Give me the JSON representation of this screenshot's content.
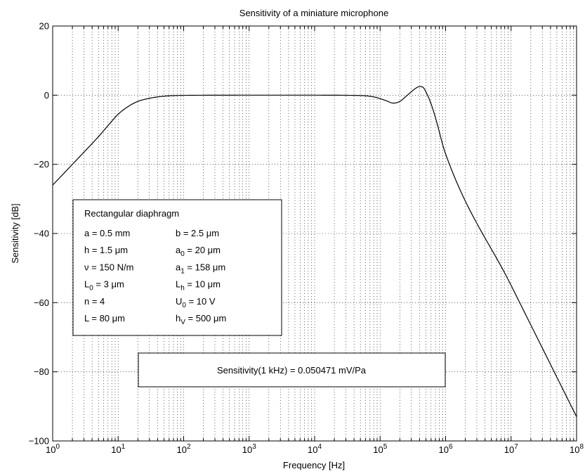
{
  "chart_data": {
    "type": "line",
    "title": "Sensitivity of a miniature microphone",
    "xlabel": "Frequency [Hz]",
    "ylabel": "Sensitivity [dB]",
    "x_scale": "log",
    "xlim": [
      1,
      100000000
    ],
    "ylim": [
      -100,
      20
    ],
    "grid": true,
    "line_color": "#000000",
    "x_ticks": [
      {
        "base": "10",
        "exp": "0"
      },
      {
        "base": "10",
        "exp": "1"
      },
      {
        "base": "10",
        "exp": "2"
      },
      {
        "base": "10",
        "exp": "3"
      },
      {
        "base": "10",
        "exp": "4"
      },
      {
        "base": "10",
        "exp": "5"
      },
      {
        "base": "10",
        "exp": "6"
      },
      {
        "base": "10",
        "exp": "7"
      },
      {
        "base": "10",
        "exp": "8"
      }
    ],
    "y_ticks": [
      "20",
      "0",
      "−20",
      "−40",
      "−60",
      "−80",
      "−100"
    ],
    "series": [
      {
        "points": [
          [
            1,
            -26.0
          ],
          [
            1.5,
            -22.5
          ],
          [
            2,
            -20.0
          ],
          [
            3,
            -16.5
          ],
          [
            5,
            -12.0
          ],
          [
            7,
            -8.8
          ],
          [
            10,
            -5.5
          ],
          [
            15,
            -3.0
          ],
          [
            20,
            -1.8
          ],
          [
            30,
            -0.9
          ],
          [
            50,
            -0.3
          ],
          [
            100,
            -0.05
          ],
          [
            1000,
            0.0
          ],
          [
            10000,
            0.0
          ],
          [
            50000,
            -0.1
          ],
          [
            80000,
            -0.5
          ],
          [
            120000,
            -1.5
          ],
          [
            160000,
            -2.3
          ],
          [
            200000,
            -1.8
          ],
          [
            250000,
            -0.3
          ],
          [
            300000,
            1.0
          ],
          [
            350000,
            2.0
          ],
          [
            400000,
            2.5
          ],
          [
            450000,
            2.3
          ],
          [
            500000,
            1.0
          ],
          [
            600000,
            -2.5
          ],
          [
            700000,
            -6.5
          ],
          [
            1000000,
            -17.0
          ],
          [
            10000000,
            -55.0
          ],
          [
            100000000,
            -93.0
          ]
        ]
      }
    ],
    "annotations": {
      "params_box": {
        "heading": "Rectangular diaphragm",
        "rows": [
          {
            "left": {
              "base": "a = 0.5 mm",
              "sub": "",
              "rest": ""
            },
            "right": {
              "base": "b = 2.5 μm",
              "sub": "",
              "rest": ""
            }
          },
          {
            "left": {
              "base": "h = 1.5 μm",
              "sub": "",
              "rest": ""
            },
            "right": {
              "base": "a",
              "sub": "0",
              "rest": " = 20 μm"
            }
          },
          {
            "left": {
              "base": "ν = 150 N/m",
              "sub": "",
              "rest": ""
            },
            "right": {
              "base": "a",
              "sub": "1",
              "rest": " = 158 μm"
            }
          },
          {
            "left": {
              "base": "L",
              "sub": "0",
              "rest": " = 3 μm"
            },
            "right": {
              "base": "L",
              "sub": "h",
              "rest": " = 10 μm"
            }
          },
          {
            "left": {
              "base": "n = 4",
              "sub": "",
              "rest": ""
            },
            "right": {
              "base": "U",
              "sub": "0",
              "rest": " = 10 V"
            }
          },
          {
            "left": {
              "base": "L = 80 μm",
              "sub": "",
              "rest": ""
            },
            "right": {
              "base": "h",
              "sub": "V",
              "rest": " = 500 μm"
            }
          }
        ]
      },
      "sensitivity_box": {
        "text": "Sensitivity(1 kHz) = 0.050471 mV/Pa"
      }
    }
  }
}
